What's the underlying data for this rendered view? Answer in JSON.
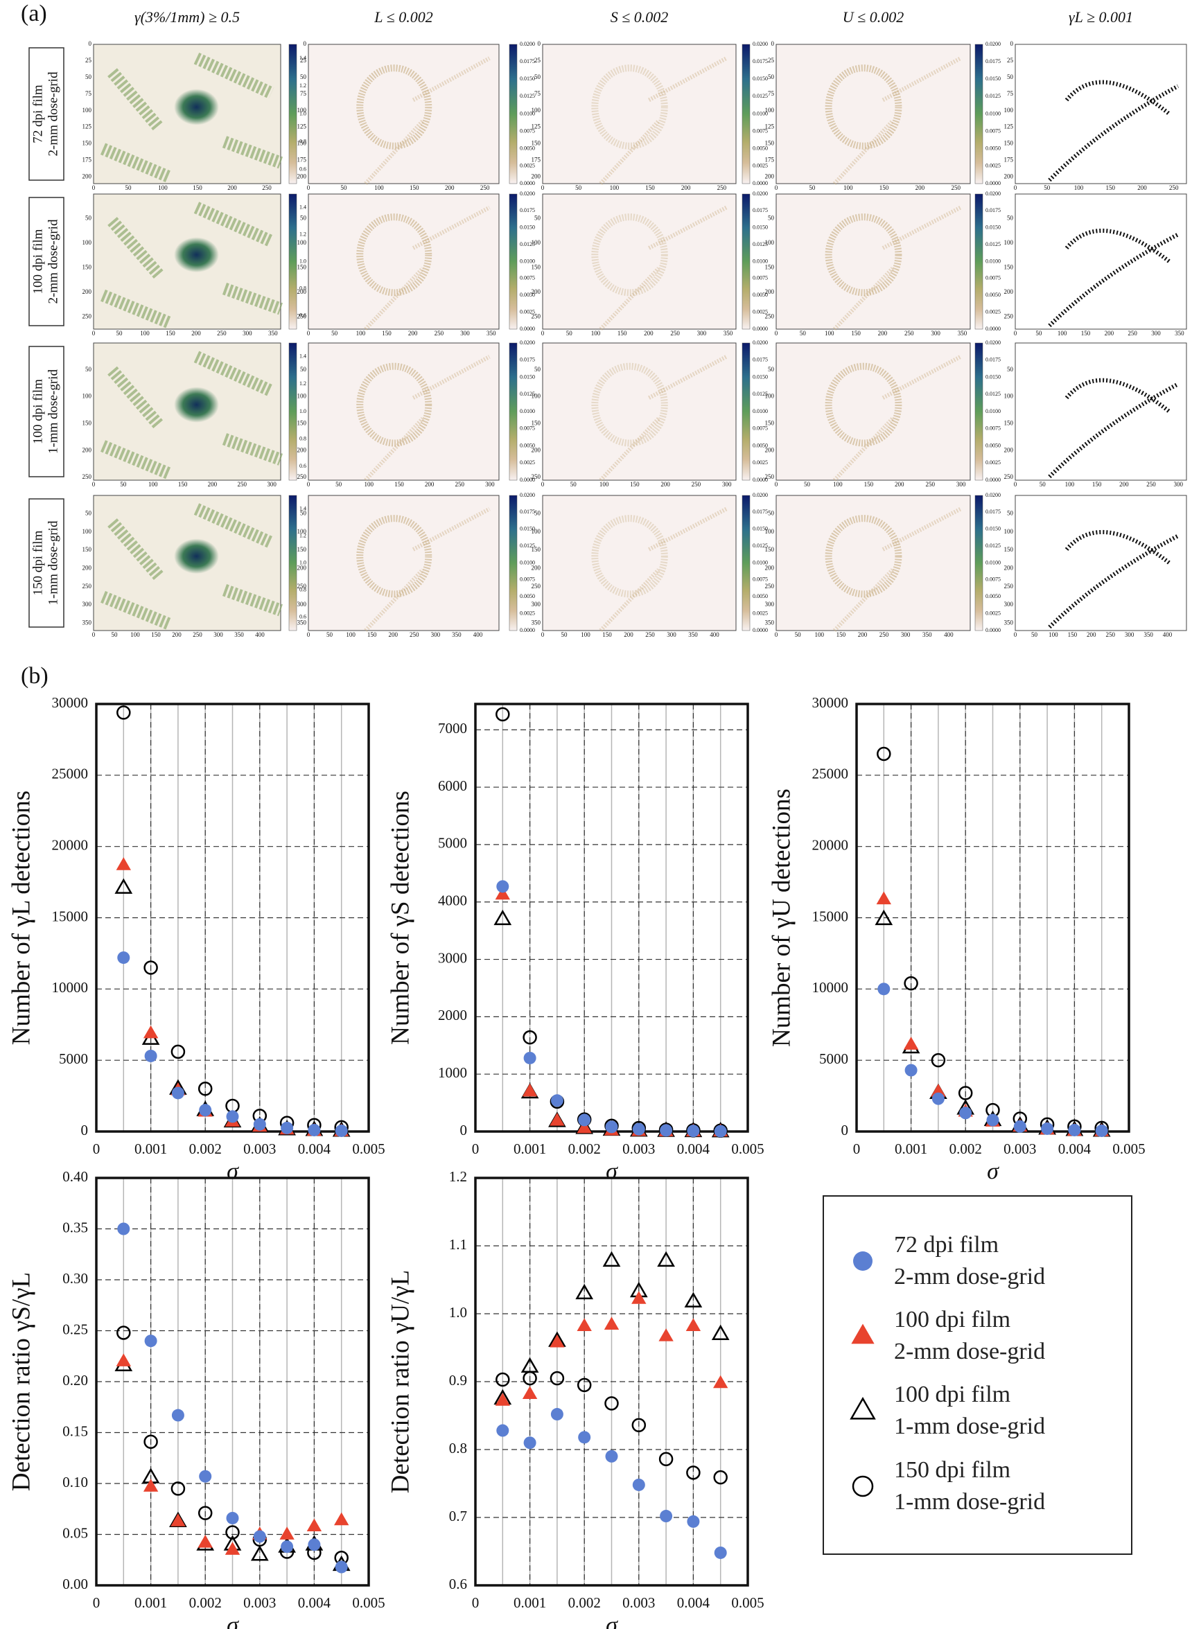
{
  "panel_a": {
    "label": "(a)",
    "column_titles": [
      "γ(3%/1mm) ≥ 0.5",
      "L ≤ 0.002",
      "S ≤ 0.002",
      "U ≤ 0.002",
      "γL ≥ 0.001"
    ],
    "gamma_colorbar_ticks": [
      "1.4",
      "1.2",
      "1.0",
      "0.8",
      "0.6"
    ],
    "ratio_colorbar_ticks": [
      "0.0200",
      "0.0175",
      "0.0150",
      "0.0125",
      "0.0100",
      "0.0075",
      "0.0050",
      "0.0025",
      "0.0000"
    ],
    "rows": [
      {
        "label": [
          "72 dpi film",
          "2-mm dose-grid"
        ],
        "xlim": [
          0,
          270
        ],
        "ylim": [
          0,
          210
        ],
        "xticks": [
          0,
          50,
          100,
          150,
          200,
          250
        ],
        "yticks": [
          0,
          25,
          50,
          75,
          100,
          125,
          150,
          175,
          200
        ]
      },
      {
        "label": [
          "100 dpi film",
          "2-mm dose-grid"
        ],
        "xlim": [
          0,
          365
        ],
        "ylim": [
          0,
          275
        ],
        "xticks": [
          0,
          50,
          100,
          150,
          200,
          250,
          300,
          350
        ],
        "yticks": [
          50,
          100,
          150,
          200,
          250
        ]
      },
      {
        "label": [
          "100 dpi film",
          "1-mm dose-grid"
        ],
        "xlim": [
          0,
          315
        ],
        "ylim": [
          0,
          255
        ],
        "xticks": [
          0,
          50,
          100,
          150,
          200,
          250,
          300
        ],
        "yticks": [
          50,
          100,
          150,
          200,
          250
        ]
      },
      {
        "label": [
          "150 dpi film",
          "1-mm dose-grid"
        ],
        "xlim": [
          0,
          450
        ],
        "ylim": [
          0,
          370
        ],
        "xticks": [
          0,
          50,
          100,
          150,
          200,
          250,
          300,
          350,
          400
        ],
        "yticks": [
          50,
          100,
          150,
          200,
          250,
          300,
          350
        ]
      }
    ]
  },
  "panel_b_label": "(b)",
  "chart_data": [
    {
      "type": "scatter",
      "ylabel": "Number of γL detections",
      "xlabel": "σ",
      "x": [
        0.0005,
        0.001,
        0.0015,
        0.002,
        0.0025,
        0.003,
        0.0035,
        0.004,
        0.0045
      ],
      "xlim": [
        0,
        0.005
      ],
      "xticks": [
        0,
        0.001,
        0.002,
        0.003,
        0.004,
        0.005
      ],
      "ylim": [
        0,
        30000
      ],
      "yticks": [
        0,
        5000,
        10000,
        15000,
        20000,
        25000,
        30000
      ],
      "grid": true,
      "series": [
        {
          "name": "72 dpi film\n2-mm dose-grid",
          "color": "#5b7fd2",
          "marker": "circle",
          "filled": true,
          "values": [
            12200,
            5300,
            2700,
            1500,
            1050,
            500,
            250,
            100,
            50
          ]
        },
        {
          "name": "100 dpi film\n2-mm dose-grid",
          "color": "#e8432e",
          "marker": "triangle",
          "filled": true,
          "values": [
            18700,
            6900,
            2900,
            1400,
            700,
            350,
            150,
            50,
            20
          ]
        },
        {
          "name": "100 dpi film\n1-mm dose-grid",
          "color": "#000000",
          "marker": "triangle",
          "filled": false,
          "values": [
            17100,
            6500,
            3000,
            1500,
            700,
            400,
            150,
            100,
            50
          ]
        },
        {
          "name": "150 dpi film\n1-mm dose-grid",
          "color": "#000000",
          "marker": "circle",
          "filled": false,
          "values": [
            29400,
            11500,
            5600,
            3000,
            1800,
            1100,
            600,
            450,
            300
          ]
        }
      ]
    },
    {
      "type": "scatter",
      "ylabel": "Number of γS detections",
      "xlabel": "σ",
      "x": [
        0.0005,
        0.001,
        0.0015,
        0.002,
        0.0025,
        0.003,
        0.0035,
        0.004,
        0.0045
      ],
      "xlim": [
        0,
        0.005
      ],
      "xticks": [
        0,
        0.001,
        0.002,
        0.003,
        0.004,
        0.005
      ],
      "ylim": [
        0,
        7450
      ],
      "yticks": [
        0,
        1000,
        2000,
        3000,
        4000,
        5000,
        6000,
        7000
      ],
      "grid": true,
      "series": [
        {
          "name": "72 dpi film\n2-mm dose-grid",
          "color": "#5b7fd2",
          "marker": "circle",
          "filled": true,
          "values": [
            4270,
            1280,
            540,
            200,
            80,
            40,
            20,
            10,
            5
          ]
        },
        {
          "name": "100 dpi film\n2-mm dose-grid",
          "color": "#e8432e",
          "marker": "triangle",
          "filled": true,
          "values": [
            4130,
            700,
            190,
            60,
            20,
            10,
            5,
            3,
            2
          ]
        },
        {
          "name": "100 dpi film\n1-mm dose-grid",
          "color": "#000000",
          "marker": "triangle",
          "filled": false,
          "values": [
            3700,
            680,
            180,
            60,
            30,
            15,
            10,
            5,
            3
          ]
        },
        {
          "name": "150 dpi film\n1-mm dose-grid",
          "color": "#000000",
          "marker": "circle",
          "filled": false,
          "values": [
            7270,
            1640,
            520,
            210,
            100,
            60,
            30,
            20,
            15
          ]
        }
      ]
    },
    {
      "type": "scatter",
      "ylabel": "Number of γU detections",
      "xlabel": "σ",
      "x": [
        0.0005,
        0.001,
        0.0015,
        0.002,
        0.0025,
        0.003,
        0.0035,
        0.004,
        0.0045
      ],
      "xlim": [
        0,
        0.005
      ],
      "xticks": [
        0,
        0.001,
        0.002,
        0.003,
        0.004,
        0.005
      ],
      "ylim": [
        0,
        30000
      ],
      "yticks": [
        0,
        5000,
        10000,
        15000,
        20000,
        25000,
        30000
      ],
      "grid": true,
      "series": [
        {
          "name": "72 dpi film\n2-mm dose-grid",
          "color": "#5b7fd2",
          "marker": "circle",
          "filled": true,
          "values": [
            10000,
            4300,
            2300,
            1300,
            800,
            350,
            200,
            100,
            50
          ]
        },
        {
          "name": "100 dpi film\n2-mm dose-grid",
          "color": "#e8432e",
          "marker": "triangle",
          "filled": true,
          "values": [
            16300,
            6100,
            2800,
            1400,
            700,
            350,
            150,
            50,
            20
          ]
        },
        {
          "name": "100 dpi film\n1-mm dose-grid",
          "color": "#000000",
          "marker": "triangle",
          "filled": false,
          "values": [
            14900,
            5900,
            2700,
            1600,
            800,
            400,
            200,
            100,
            50
          ]
        },
        {
          "name": "150 dpi film\n1-mm dose-grid",
          "color": "#000000",
          "marker": "circle",
          "filled": false,
          "values": [
            26500,
            10400,
            5000,
            2700,
            1500,
            900,
            500,
            350,
            250
          ]
        }
      ]
    },
    {
      "type": "scatter",
      "ylabel": "Detection ratio γS/γL",
      "xlabel": "σ",
      "x": [
        0.0005,
        0.001,
        0.0015,
        0.002,
        0.0025,
        0.003,
        0.0035,
        0.004,
        0.0045
      ],
      "xlim": [
        0,
        0.005
      ],
      "xticks": [
        0,
        0.001,
        0.002,
        0.003,
        0.004,
        0.005
      ],
      "ylim": [
        0,
        0.4
      ],
      "yticks": [
        {
          "value": 0,
          "label": "0.00"
        },
        0.05,
        {
          "value": 0.1,
          "label": "0.10"
        },
        0.15,
        {
          "value": 0.2,
          "label": "0.20"
        },
        0.25,
        {
          "value": 0.3,
          "label": "0.30"
        },
        0.35,
        {
          "value": 0.4,
          "label": "0.40"
        }
      ],
      "grid": true,
      "series": [
        {
          "name": "72 dpi film\n2-mm dose-grid",
          "color": "#5b7fd2",
          "marker": "circle",
          "filled": true,
          "values": [
            0.35,
            0.24,
            0.167,
            0.107,
            0.066,
            0.048,
            0.038,
            0.04,
            0.018
          ]
        },
        {
          "name": "100 dpi film\n2-mm dose-grid",
          "color": "#e8432e",
          "marker": "triangle",
          "filled": true,
          "values": [
            0.22,
            0.097,
            0.063,
            0.042,
            0.035,
            0.05,
            0.05,
            0.058,
            0.064
          ]
        },
        {
          "name": "100 dpi film\n1-mm dose-grid",
          "color": "#000000",
          "marker": "triangle",
          "filled": false,
          "values": [
            0.216,
            0.106,
            0.063,
            0.04,
            0.04,
            0.03,
            0.038,
            0.04,
            0.02
          ]
        },
        {
          "name": "150 dpi film\n1-mm dose-grid",
          "color": "#000000",
          "marker": "circle",
          "filled": false,
          "values": [
            0.248,
            0.141,
            0.095,
            0.071,
            0.052,
            0.045,
            0.033,
            0.032,
            0.027
          ]
        }
      ]
    },
    {
      "type": "scatter",
      "ylabel": "Detection ratio γU/γL",
      "xlabel": "σ",
      "x": [
        0.0005,
        0.001,
        0.0015,
        0.002,
        0.0025,
        0.003,
        0.0035,
        0.004,
        0.0045
      ],
      "xlim": [
        0,
        0.005
      ],
      "xticks": [
        0,
        0.001,
        0.002,
        0.003,
        0.004,
        0.005
      ],
      "ylim": [
        0.6,
        1.2
      ],
      "yticks": [
        0.6,
        0.7,
        0.8,
        0.9,
        {
          "value": 1,
          "label": "1.0"
        },
        1.1,
        1.2
      ],
      "grid": true,
      "series": [
        {
          "name": "72 dpi film\n2-mm dose-grid",
          "color": "#5b7fd2",
          "marker": "circle",
          "filled": true,
          "values": [
            0.828,
            0.81,
            0.852,
            0.818,
            0.79,
            0.748,
            0.702,
            0.694,
            0.648
          ]
        },
        {
          "name": "100 dpi film\n2-mm dose-grid",
          "color": "#e8432e",
          "marker": "triangle",
          "filled": true,
          "values": [
            0.872,
            0.882,
            0.958,
            0.982,
            0.984,
            1.022,
            0.967,
            0.982,
            0.898
          ]
        },
        {
          "name": "100 dpi film\n1-mm dose-grid",
          "color": "#000000",
          "marker": "triangle",
          "filled": false,
          "values": [
            0.875,
            0.922,
            0.96,
            1.03,
            1.078,
            1.033,
            1.078,
            1.018,
            0.97
          ]
        },
        {
          "name": "150 dpi film\n1-mm dose-grid",
          "color": "#000000",
          "marker": "circle",
          "filled": false,
          "values": [
            0.903,
            0.905,
            0.905,
            0.895,
            0.868,
            0.836,
            0.786,
            0.766,
            0.759
          ]
        }
      ]
    }
  ]
}
